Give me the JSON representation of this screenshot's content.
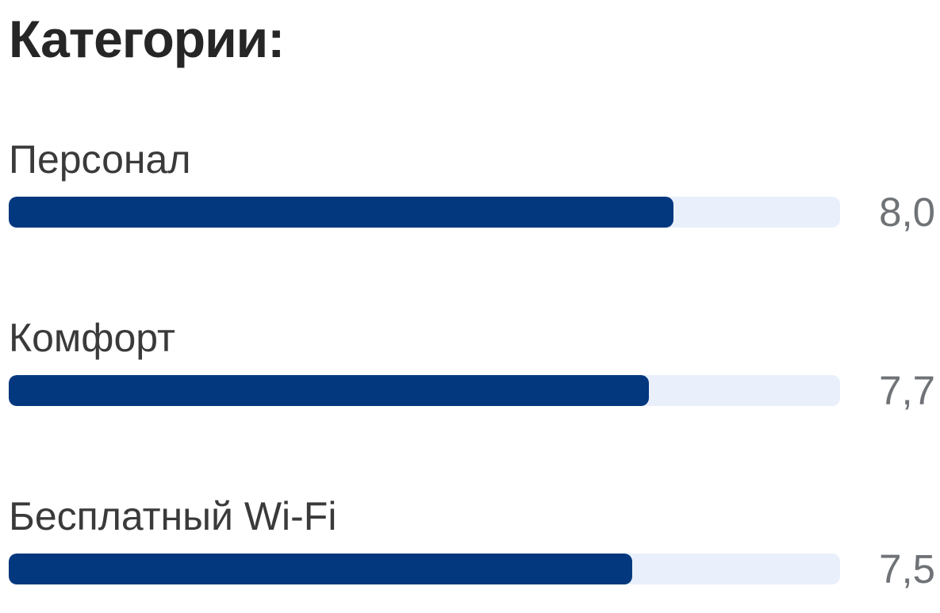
{
  "section": {
    "title": "Категории:"
  },
  "chart_data": {
    "type": "bar",
    "orientation": "horizontal",
    "title": "Категории:",
    "categories": [
      "Персонал",
      "Комфорт",
      "Бесплатный Wi-Fi"
    ],
    "values": [
      8.0,
      7.7,
      7.5
    ],
    "value_labels": [
      "8,0",
      "7,7",
      "7,5"
    ],
    "xlim": [
      0,
      10
    ],
    "grid": false,
    "legend": "none",
    "value_label_position": "right",
    "colors": {
      "bar_fill": "#04387e",
      "bar_track": "#e9f0fc",
      "value_text": "#6f7276",
      "label_text": "#3a3a3a",
      "title_text": "#262626",
      "background": "#ffffff"
    }
  }
}
